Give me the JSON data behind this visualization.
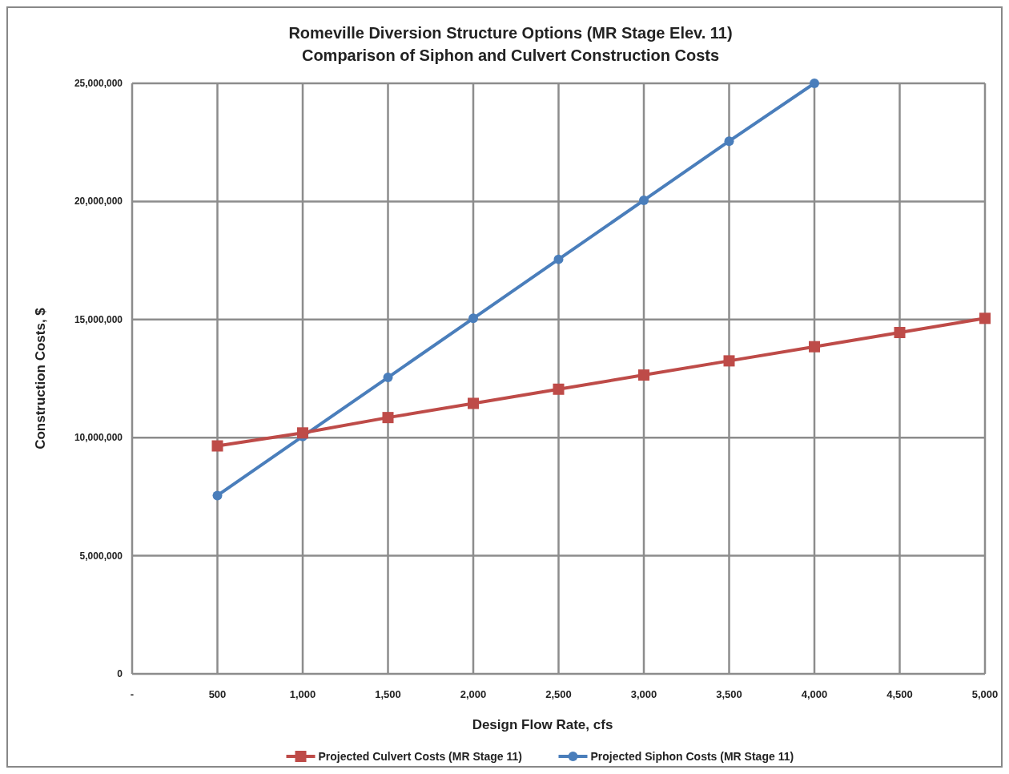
{
  "chart_data": {
    "type": "line",
    "title": "Romeville Diversion Structure Options (MR Stage Elev. 11)",
    "subtitle": "Comparison of Siphon and Culvert Construction Costs",
    "xlabel": "Design Flow Rate, cfs",
    "ylabel": "Construction Costs, $",
    "x": [
      500,
      1000,
      1500,
      2000,
      2500,
      3000,
      3500,
      4000,
      4500,
      5000
    ],
    "series": [
      {
        "name": "Projected Culvert Costs (MR Stage 11)",
        "color": "#be4b48",
        "marker": "square",
        "values": [
          9650000,
          10200000,
          10850000,
          11450000,
          12050000,
          12650000,
          13250000,
          13850000,
          14450000,
          15050000
        ]
      },
      {
        "name": "Projected Siphon Costs (MR Stage 11)",
        "color": "#4a7ebb",
        "marker": "circle",
        "values": [
          7550000,
          10050000,
          12550000,
          15050000,
          17550000,
          20050000,
          22550000,
          25000000,
          null,
          null
        ]
      }
    ],
    "xlim": [
      0,
      5000
    ],
    "xticks": [
      {
        "value": 0,
        "label": "-"
      },
      {
        "value": 500,
        "label": "500"
      },
      {
        "value": 1000,
        "label": "1,000"
      },
      {
        "value": 1500,
        "label": "1,500"
      },
      {
        "value": 2000,
        "label": "2,000"
      },
      {
        "value": 2500,
        "label": "2,500"
      },
      {
        "value": 3000,
        "label": "3,000"
      },
      {
        "value": 3500,
        "label": "3,500"
      },
      {
        "value": 4000,
        "label": "4,000"
      },
      {
        "value": 4500,
        "label": "4,500"
      },
      {
        "value": 5000,
        "label": "5,000"
      }
    ],
    "ylim": [
      0,
      25000000
    ],
    "yticks": [
      0,
      {
        "value": 5000000,
        "label": "5,000,000"
      },
      {
        "value": 10000000,
        "label": "10,000,000"
      },
      {
        "value": 15000000,
        "label": "15,000,000"
      },
      {
        "value": 20000000,
        "label": "20,000,000"
      },
      {
        "value": 25000000,
        "label": "25,000,000"
      }
    ],
    "grid": true,
    "legend": "bottom",
    "line_style": "solid"
  }
}
